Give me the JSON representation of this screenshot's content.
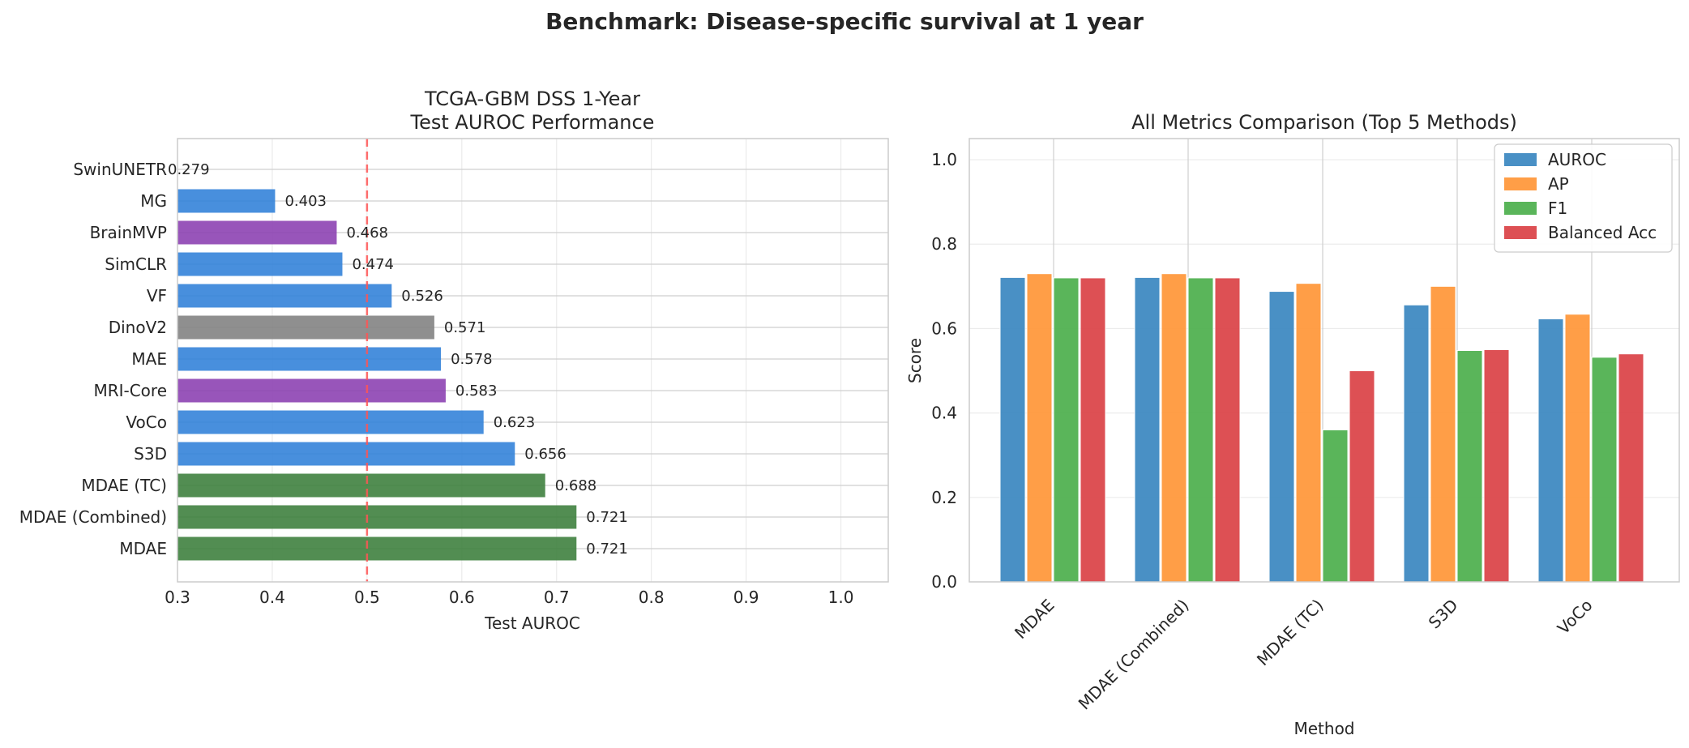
{
  "figure": {
    "suptitle": "Benchmark: Disease-specific survival at 1 year"
  },
  "chart_data": [
    {
      "type": "bar",
      "orientation": "horizontal",
      "title": "TCGA-GBM DSS 1-Year\nTest AUROC Performance",
      "xlabel": "Test AUROC",
      "ylabel": "",
      "xlim": [
        0.3,
        1.05
      ],
      "xticks": [
        "0.3",
        "0.4",
        "0.5",
        "0.6",
        "0.7",
        "0.8",
        "0.9",
        "1.0"
      ],
      "grid": true,
      "reference_line": {
        "x": 0.5,
        "style": "dashed",
        "color": "#ff5555"
      },
      "categories": [
        "MDAE",
        "MDAE (Combined)",
        "MDAE (TC)",
        "S3D",
        "VoCo",
        "MRI-Core",
        "MAE",
        "DinoV2",
        "VF",
        "SimCLR",
        "BrainMVP",
        "MG",
        "SwinUNETR"
      ],
      "values": [
        0.721,
        0.721,
        0.688,
        0.656,
        0.623,
        0.583,
        0.578,
        0.571,
        0.526,
        0.474,
        0.468,
        0.403,
        0.279
      ],
      "value_labels": [
        "0.721",
        "0.721",
        "0.688",
        "0.656",
        "0.623",
        "0.583",
        "0.578",
        "0.571",
        "0.526",
        "0.474",
        "0.468",
        "0.403",
        "0.279"
      ],
      "colors": [
        "#3a7d3a",
        "#3a7d3a",
        "#3a7d3a",
        "#2f80d8",
        "#2f80d8",
        "#8a3db0",
        "#2f80d8",
        "#808080",
        "#2f80d8",
        "#2f80d8",
        "#8a3db0",
        "#2f80d8",
        "#2f80d8"
      ]
    },
    {
      "type": "bar",
      "title": "All Metrics Comparison (Top 5 Methods)",
      "xlabel": "Method",
      "ylabel": "Score",
      "ylim": [
        0,
        1.05
      ],
      "yticks": [
        "0.0",
        "0.2",
        "0.4",
        "0.6",
        "0.8",
        "1.0"
      ],
      "grid": true,
      "legend": "top-right",
      "categories": [
        "MDAE",
        "MDAE (Combined)",
        "MDAE (TC)",
        "S3D",
        "VoCo"
      ],
      "series": [
        {
          "name": "AUROC",
          "color": "#3a87c0",
          "values": [
            0.721,
            0.721,
            0.688,
            0.656,
            0.623
          ]
        },
        {
          "name": "AP",
          "color": "#ff9637",
          "values": [
            0.73,
            0.73,
            0.707,
            0.7,
            0.634
          ]
        },
        {
          "name": "F1",
          "color": "#4caf4c",
          "values": [
            0.72,
            0.72,
            0.36,
            0.548,
            0.532
          ]
        },
        {
          "name": "Balanced Acc",
          "color": "#da4145",
          "values": [
            0.72,
            0.72,
            0.5,
            0.55,
            0.54
          ]
        }
      ]
    }
  ]
}
